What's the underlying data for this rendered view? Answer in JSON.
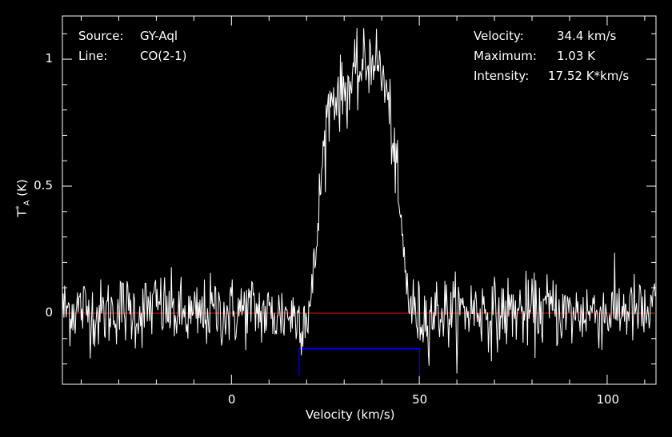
{
  "chart_data": {
    "type": "line",
    "xlabel": "Velocity (km/s)",
    "ylabel_main": "T",
    "ylabel_sup": "*",
    "ylabel_sub": "A",
    "ylabel_unit": "(K)",
    "xlim": [
      -45,
      113
    ],
    "ylim": [
      -0.28,
      1.17
    ],
    "xticks": [
      0,
      50,
      100
    ],
    "yticks": [
      0,
      0.5,
      1
    ],
    "ytick_labels": [
      "0",
      "0.5",
      "1"
    ],
    "xtick_labels": [
      "0",
      "50",
      "100"
    ],
    "baseline": 0,
    "integration_window": {
      "x": [
        18,
        50
      ],
      "y": -0.14
    },
    "line_profile": {
      "points": [
        [
          -45,
          0.01
        ],
        [
          -40,
          0.02
        ],
        [
          -35,
          -0.01
        ],
        [
          -30,
          0.02
        ],
        [
          -25,
          0.0
        ],
        [
          -20,
          0.03
        ],
        [
          -15,
          0.0
        ],
        [
          -10,
          -0.02
        ],
        [
          -5,
          0.01
        ],
        [
          0,
          0.0
        ],
        [
          5,
          0.02
        ],
        [
          10,
          -0.01
        ],
        [
          15,
          0.0
        ],
        [
          18,
          -0.02
        ],
        [
          20,
          0.0
        ],
        [
          21,
          0.03
        ],
        [
          22,
          0.15
        ],
        [
          23,
          0.35
        ],
        [
          24,
          0.55
        ],
        [
          25,
          0.72
        ],
        [
          26,
          0.82
        ],
        [
          27,
          0.85
        ],
        [
          28,
          0.87
        ],
        [
          29,
          0.86
        ],
        [
          30,
          0.88
        ],
        [
          31,
          0.89
        ],
        [
          32,
          0.9
        ],
        [
          33,
          0.92
        ],
        [
          34,
          0.95
        ],
        [
          35,
          0.96
        ],
        [
          36,
          0.98
        ],
        [
          37,
          1.0
        ],
        [
          38,
          1.03
        ],
        [
          39,
          0.97
        ],
        [
          40,
          0.94
        ],
        [
          41,
          0.88
        ],
        [
          42,
          0.8
        ],
        [
          43,
          0.68
        ],
        [
          44,
          0.52
        ],
        [
          45,
          0.36
        ],
        [
          46,
          0.2
        ],
        [
          47,
          0.08
        ],
        [
          48,
          0.02
        ],
        [
          50,
          -0.02
        ],
        [
          55,
          0.01
        ],
        [
          60,
          0.0
        ],
        [
          65,
          0.02
        ],
        [
          70,
          -0.01
        ],
        [
          75,
          0.01
        ],
        [
          80,
          0.0
        ],
        [
          85,
          0.02
        ],
        [
          90,
          -0.01
        ],
        [
          95,
          0.01
        ],
        [
          100,
          0.0
        ],
        [
          105,
          0.02
        ],
        [
          110,
          -0.01
        ],
        [
          113,
          0.01
        ]
      ],
      "noise_rms": 0.07
    },
    "colors": {
      "spectrum": "#ffffff",
      "baseline": "#ff0000",
      "window": "#0000ff",
      "axes": "#ffffff"
    }
  },
  "annotations": {
    "source_label": "Source:",
    "source_value": "GY-Aql",
    "line_label": "Line:",
    "line_value": "CO(2-1)",
    "velocity_label": "Velocity:",
    "velocity_value": "34.4 km/s",
    "maximum_label": "Maximum:",
    "maximum_value": "1.03 K",
    "intensity_label": "Intensity:",
    "intensity_value": "17.52 K*km/s"
  }
}
